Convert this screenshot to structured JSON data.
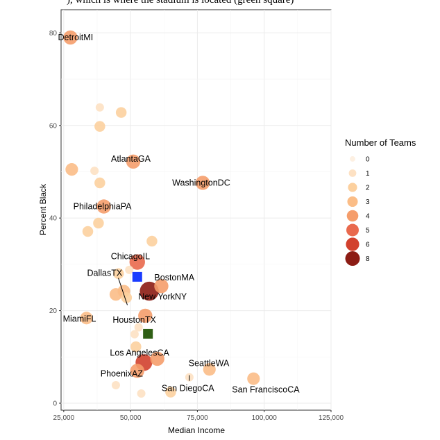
{
  "top_cut_text": "), which is where the stadium is located (green square)",
  "chart_data": {
    "type": "scatter",
    "xlabel": "Median Income",
    "ylabel": "Percent Black",
    "xlim": [
      24000,
      125000
    ],
    "ylim": [
      -1.5,
      85
    ],
    "x_ticks": [
      25000,
      50000,
      75000,
      100000,
      125000
    ],
    "x_tick_labels": [
      "25,000",
      "50,000",
      "75,000",
      "100,000",
      "125,000"
    ],
    "y_ticks": [
      0,
      20,
      40,
      60,
      80
    ],
    "y_tick_labels": [
      "0",
      "20",
      "40",
      "60",
      "80"
    ],
    "grid": true,
    "legend": {
      "title": "Number of Teams",
      "placement": "right",
      "entries": [
        {
          "label": "0",
          "color": "#fdf0e2"
        },
        {
          "label": "1",
          "color": "#fde1c3"
        },
        {
          "label": "2",
          "color": "#fcd09e"
        },
        {
          "label": "3",
          "color": "#fbbd87"
        },
        {
          "label": "4",
          "color": "#f59d6b"
        },
        {
          "label": "5",
          "color": "#e9694d"
        },
        {
          "label": "6",
          "color": "#d2412d"
        },
        {
          "label": "8",
          "color": "#8c1c14"
        }
      ]
    },
    "points": [
      {
        "x": 27500,
        "y": 79,
        "teams": 4,
        "label": "DetroitMI"
      },
      {
        "x": 28000,
        "y": 50.5,
        "teams": 3
      },
      {
        "x": 36500,
        "y": 50.2,
        "teams": 1
      },
      {
        "x": 38500,
        "y": 63.9,
        "teams": 1
      },
      {
        "x": 38500,
        "y": 59.8,
        "teams": 2
      },
      {
        "x": 46500,
        "y": 62.8,
        "teams": 2
      },
      {
        "x": 38500,
        "y": 47.6,
        "teams": 2
      },
      {
        "x": 38000,
        "y": 38.9,
        "teams": 2
      },
      {
        "x": 34000,
        "y": 37.1,
        "teams": 2
      },
      {
        "x": 33500,
        "y": 18.4,
        "teams": 3,
        "label": "MiamiFL"
      },
      {
        "x": 51000,
        "y": 52.2,
        "teams": 4,
        "label": "AtlantaGA"
      },
      {
        "x": 77000,
        "y": 47.6,
        "teams": 4,
        "label": "WashingtonDC"
      },
      {
        "x": 40000,
        "y": 42.5,
        "teams": 4,
        "label": "PhiladelphiaPA"
      },
      {
        "x": 52500,
        "y": 30.5,
        "teams": 5,
        "label": "ChicagoIL"
      },
      {
        "x": 58000,
        "y": 35,
        "teams": 2
      },
      {
        "x": 49500,
        "y": 28.8,
        "teams": 1
      },
      {
        "x": 45500,
        "y": 28,
        "teams": 2
      },
      {
        "x": 61500,
        "y": 25.3,
        "teams": 4,
        "label": "BostonMA"
      },
      {
        "x": 47500,
        "y": 24.2,
        "teams": 3,
        "label": "DallasTX"
      },
      {
        "x": 44500,
        "y": 23.5,
        "teams": 3
      },
      {
        "x": 48500,
        "y": 22.8,
        "teams": 2
      },
      {
        "x": 57000,
        "y": 24.2,
        "teams": 8,
        "label": "New YorkNY"
      },
      {
        "x": 55500,
        "y": 18.9,
        "teams": 4,
        "label": "HoustonTX"
      },
      {
        "x": 51500,
        "y": 14.9,
        "teams": 1
      },
      {
        "x": 53000,
        "y": 16.4,
        "teams": 1
      },
      {
        "x": 52000,
        "y": 12.2,
        "teams": 2
      },
      {
        "x": 60000,
        "y": 9.6,
        "teams": 4
      },
      {
        "x": 55000,
        "y": 8.8,
        "teams": 6,
        "label": "Los AngelesCA"
      },
      {
        "x": 52500,
        "y": 7,
        "teams": 4,
        "label": "PhoenixAZ"
      },
      {
        "x": 79500,
        "y": 7.3,
        "teams": 3,
        "label": "SeattleWA"
      },
      {
        "x": 72000,
        "y": 5.6,
        "teams": 1,
        "label": "San DiegoCA"
      },
      {
        "x": 96000,
        "y": 5.3,
        "teams": 3,
        "label": "San FranciscoCA"
      },
      {
        "x": 65000,
        "y": 2.4,
        "teams": 2
      },
      {
        "x": 44500,
        "y": 3.9,
        "teams": 1
      },
      {
        "x": 54000,
        "y": 2.1,
        "teams": 1
      }
    ],
    "markers": [
      {
        "x": 52500,
        "y": 27.3,
        "color": "#1a3cff",
        "shape": "square"
      },
      {
        "x": 56500,
        "y": 15,
        "color": "#2f5f15",
        "shape": "square"
      }
    ]
  }
}
